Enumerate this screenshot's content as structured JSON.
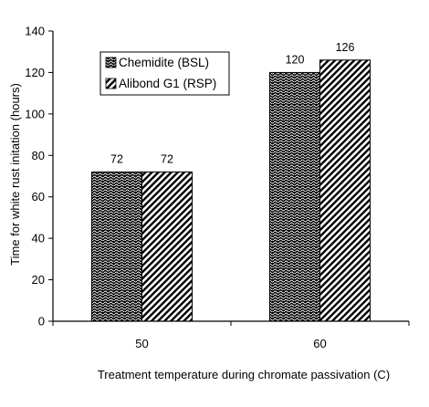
{
  "chart_data": {
    "type": "bar",
    "categories": [
      "50",
      "60"
    ],
    "series": [
      {
        "name": "Chemidite (BSL)",
        "values": [
          72,
          120
        ],
        "pattern": "wave"
      },
      {
        "name": "Alibond G1 (RSP)",
        "values": [
          72,
          126
        ],
        "pattern": "diagonal"
      }
    ],
    "data_labels": [
      [
        "72",
        "120"
      ],
      [
        "72",
        "126"
      ]
    ],
    "xlabel": "Treatment temperature during chromate passivation (C)",
    "ylabel": "Time for white rust initation (hours)",
    "ylim": [
      0,
      140
    ],
    "yticks": [
      "0",
      "20",
      "40",
      "60",
      "80",
      "100",
      "120",
      "140"
    ],
    "grid": false,
    "legend_position": "top-left",
    "colors": {
      "bar_fill": "#000000",
      "bar_pattern": "#ffffff",
      "axis": "#000000"
    }
  }
}
